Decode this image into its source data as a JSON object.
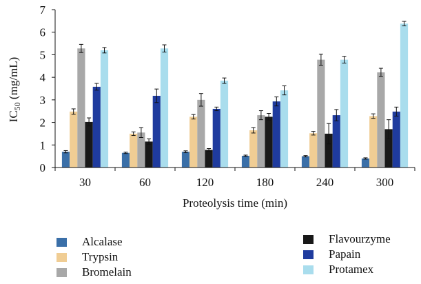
{
  "chart_data": {
    "type": "bar",
    "xlabel": "Proteolysis time (min)",
    "ylabel_main": "IC",
    "ylabel_sub": "50",
    "ylabel_rest": " (mg/mL)",
    "categories": [
      "30",
      "60",
      "120",
      "180",
      "240",
      "300"
    ],
    "ylim": [
      0,
      7
    ],
    "yticks": [
      "0",
      "1",
      "2",
      "3",
      "4",
      "5",
      "6",
      "7"
    ],
    "grid": false,
    "legend_position": "bottom",
    "series": [
      {
        "name": "Alcalase",
        "color": "#3a6fa8",
        "values": [
          0.7,
          0.65,
          0.7,
          0.52,
          0.5,
          0.4
        ],
        "errors": [
          0.05,
          0.03,
          0.04,
          0.03,
          0.03,
          0.03
        ]
      },
      {
        "name": "Trypsin",
        "color": "#f0cd94",
        "values": [
          2.48,
          1.5,
          2.25,
          1.65,
          1.52,
          2.28
        ],
        "errors": [
          0.12,
          0.08,
          0.1,
          0.12,
          0.08,
          0.1
        ]
      },
      {
        "name": "Bromelain",
        "color": "#a8a8a8",
        "values": [
          5.28,
          1.55,
          3.0,
          2.32,
          4.78,
          4.22
        ],
        "errors": [
          0.18,
          0.22,
          0.28,
          0.2,
          0.25,
          0.18
        ]
      },
      {
        "name": "Flavourzyme",
        "color": "#181818",
        "values": [
          2.02,
          1.15,
          0.78,
          2.25,
          1.5,
          1.7
        ],
        "errors": [
          0.18,
          0.12,
          0.06,
          0.15,
          0.45,
          0.42
        ]
      },
      {
        "name": "Papain",
        "color": "#1f3b9e",
        "values": [
          3.58,
          3.18,
          2.6,
          2.93,
          2.32,
          2.48
        ],
        "errors": [
          0.15,
          0.3,
          0.08,
          0.2,
          0.25,
          0.2
        ]
      },
      {
        "name": "Protamex",
        "color": "#a9dded",
        "values": [
          5.2,
          5.28,
          3.85,
          3.42,
          4.78,
          6.38
        ],
        "errors": [
          0.12,
          0.16,
          0.12,
          0.2,
          0.15,
          0.1
        ]
      }
    ]
  }
}
